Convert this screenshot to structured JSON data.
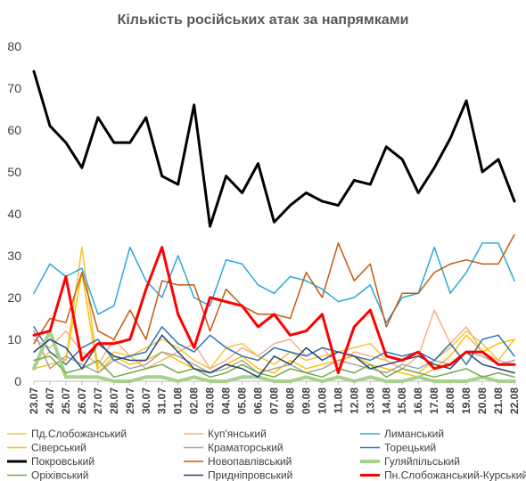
{
  "chart_data": {
    "type": "line",
    "title": "Кількість російських атак за напрямками",
    "xlabel": "",
    "ylabel": "",
    "ylim": [
      0,
      80
    ],
    "yticks": [
      0,
      10,
      20,
      30,
      40,
      50,
      60,
      70,
      80
    ],
    "grid": false,
    "legend_position": "bottom",
    "categories": [
      "23.07",
      "24.07",
      "25.07",
      "26.07",
      "27.07",
      "28.07",
      "29.07",
      "30.07",
      "31.07",
      "01.08",
      "02.08",
      "03.08",
      "04.08",
      "05.08",
      "06.08",
      "07.08",
      "08.08",
      "09.08",
      "10.08",
      "11.08",
      "12.08",
      "13.08",
      "14.08",
      "15.08",
      "16.08",
      "17.08",
      "18.08",
      "19.08",
      "20.08",
      "21.08",
      "22.08"
    ],
    "series": [
      {
        "name": "Пд.Слобожанський",
        "color": "#f5c43b",
        "width": 1.5,
        "values": [
          4,
          7,
          5,
          32,
          3,
          7,
          6,
          8,
          10,
          8,
          5,
          3,
          8,
          9,
          6,
          4,
          7,
          5,
          6,
          7,
          8,
          9,
          5,
          3,
          2,
          5,
          8,
          12,
          9,
          5,
          10
        ]
      },
      {
        "name": "Куп'янський",
        "color": "#f4b183",
        "width": 1.5,
        "values": [
          10,
          8,
          12,
          7,
          4,
          10,
          6,
          3,
          5,
          7,
          9,
          3,
          5,
          8,
          6,
          9,
          10,
          6,
          8,
          4,
          7,
          6,
          5,
          3,
          6,
          17,
          9,
          13,
          7,
          5,
          4
        ]
      },
      {
        "name": "Лиманський",
        "color": "#2aa9d8",
        "width": 1.5,
        "values": [
          21,
          28,
          25,
          27,
          16,
          18,
          32,
          24,
          20,
          30,
          20,
          18,
          29,
          28,
          23,
          21,
          25,
          24,
          22,
          19,
          20,
          23,
          14,
          20,
          21,
          32,
          21,
          26,
          33,
          33,
          24
        ]
      },
      {
        "name": "Сіверський",
        "color": "#ffc000",
        "width": 1.5,
        "values": [
          3,
          4,
          5,
          26,
          2,
          6,
          4,
          5,
          7,
          5,
          3,
          2,
          4,
          6,
          3,
          2,
          5,
          3,
          4,
          5,
          6,
          4,
          3,
          2,
          1,
          3,
          6,
          11,
          7,
          9,
          10
        ]
      },
      {
        "name": "Краматорський",
        "color": "#a5a5a5",
        "width": 1.5,
        "values": [
          12,
          3,
          6,
          4,
          2,
          5,
          3,
          4,
          7,
          6,
          4,
          2,
          3,
          5,
          2,
          3,
          4,
          2,
          3,
          5,
          4,
          3,
          2,
          4,
          3,
          5,
          4,
          7,
          6,
          4,
          5
        ]
      },
      {
        "name": "Торецький",
        "color": "#2e75b6",
        "width": 1.5,
        "values": [
          13,
          7,
          4,
          8,
          10,
          5,
          6,
          7,
          13,
          9,
          7,
          11,
          8,
          6,
          5,
          8,
          7,
          6,
          8,
          7,
          6,
          5,
          7,
          6,
          7,
          5,
          9,
          4,
          10,
          11,
          6
        ]
      },
      {
        "name": "Покровський",
        "color": "#000000",
        "width": 3,
        "values": [
          74,
          61,
          57,
          51,
          63,
          57,
          57,
          63,
          49,
          47,
          66,
          37,
          49,
          45,
          52,
          38,
          42,
          45,
          43,
          42,
          48,
          47,
          56,
          53,
          45,
          51,
          58,
          67,
          50,
          53,
          43
        ]
      },
      {
        "name": "Новопавлівський",
        "color": "#c55a11",
        "width": 1.5,
        "values": [
          9,
          15,
          14,
          26,
          12,
          10,
          17,
          10,
          24,
          23,
          23,
          12,
          22,
          18,
          16,
          16,
          15,
          26,
          20,
          33,
          24,
          28,
          13,
          21,
          21,
          26,
          28,
          29,
          28,
          28,
          35
        ]
      },
      {
        "name": "Гуляйпільський",
        "color": "#a9d18e",
        "width": 4,
        "values": [
          3,
          12,
          1,
          1,
          1,
          0,
          0,
          1,
          1,
          0,
          1,
          0,
          0,
          1,
          1,
          0,
          0,
          1,
          0,
          1,
          0,
          1,
          0,
          0,
          1,
          0,
          0,
          0,
          1,
          0,
          0
        ]
      },
      {
        "name": "Оріхівський",
        "color": "#70ad47",
        "width": 1.5,
        "values": [
          5,
          6,
          2,
          3,
          5,
          1,
          2,
          3,
          4,
          2,
          3,
          1,
          2,
          4,
          2,
          1,
          3,
          2,
          1,
          3,
          2,
          4,
          1,
          3,
          2,
          1,
          2,
          3,
          1,
          2,
          1
        ]
      },
      {
        "name": "Придніпровський",
        "color": "#264478",
        "width": 1.5,
        "values": [
          7,
          10,
          8,
          3,
          9,
          6,
          5,
          5,
          11,
          7,
          3,
          2,
          4,
          3,
          1,
          6,
          4,
          8,
          5,
          7,
          6,
          3,
          4,
          5,
          6,
          4,
          3,
          7,
          4,
          3,
          2
        ]
      },
      {
        "name": "Пн.Слобожанський-Курський",
        "color": "#ff0000",
        "width": 3,
        "values": [
          11,
          12,
          25,
          5,
          9,
          9,
          10,
          22,
          32,
          16,
          8,
          20,
          19,
          18,
          13,
          16,
          11,
          12,
          16,
          2,
          13,
          17,
          6,
          5,
          7,
          3,
          4,
          7,
          7,
          4,
          4
        ]
      }
    ]
  }
}
